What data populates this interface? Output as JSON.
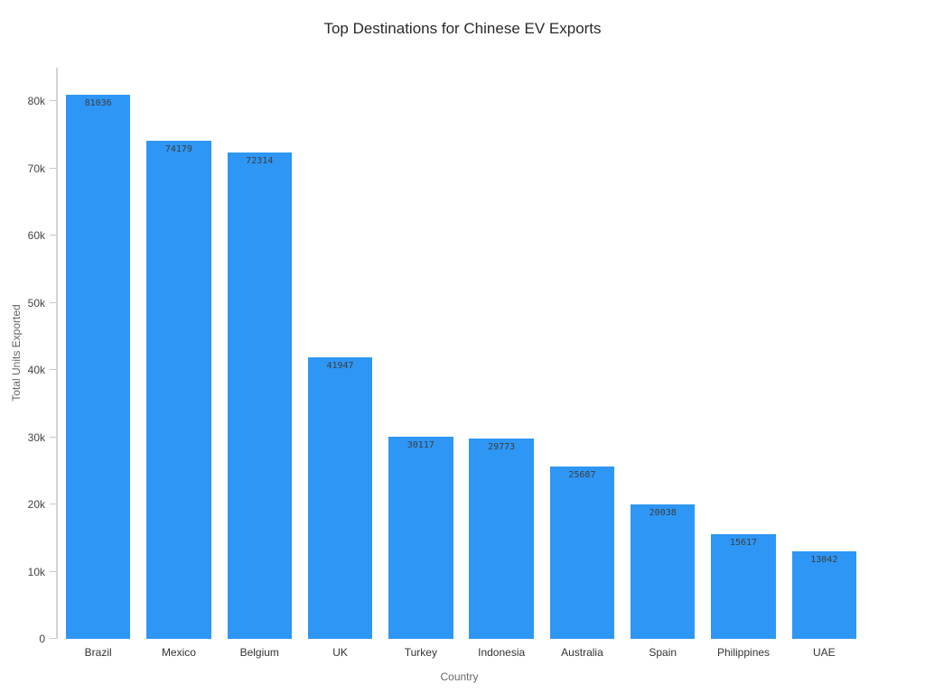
{
  "chart_data": {
    "type": "bar",
    "title": "Top Destinations for Chinese EV Exports",
    "xlabel": "Country",
    "ylabel": "Total Units Exported",
    "categories": [
      "Brazil",
      "Mexico",
      "Belgium",
      "UK",
      "Turkey",
      "Indonesia",
      "Australia",
      "Spain",
      "Philippines",
      "UAE"
    ],
    "values": [
      81036,
      74179,
      72314,
      41947,
      30117,
      29773,
      25687,
      20038,
      15617,
      13042
    ],
    "ylim": [
      0,
      85000
    ],
    "ytick_values": [
      0,
      10000,
      20000,
      30000,
      40000,
      50000,
      60000,
      70000,
      80000
    ],
    "ytick_labels": [
      "0",
      "10k",
      "20k",
      "30k",
      "40k",
      "50k",
      "60k",
      "70k",
      "80k"
    ],
    "grid": false,
    "legend": "none",
    "bar_color": "#2E96F5",
    "value_label_color": "#3d3d3d",
    "axis_line_color": "#d4d4d4"
  }
}
